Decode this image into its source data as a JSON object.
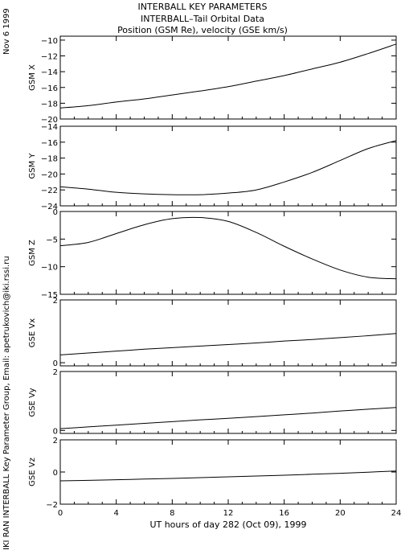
{
  "header": {
    "line1": "INTERBALL KEY PARAMETERS",
    "line2": "INTERBALL–Tail Orbital Data",
    "line3": "Position (GSM Re), velocity (GSE km/s)"
  },
  "side": {
    "date": "Nov  6 1999",
    "credit": "IKI RAN INTERBALL Key Parameter Group, Email: apetrukovich@iki.rssi.ru"
  },
  "chart_data": {
    "type": "line",
    "xlabel": "UT hours of day 282 (Oct 09), 1999",
    "xlim": [
      0,
      24
    ],
    "xticks": [
      0,
      4,
      8,
      12,
      16,
      20,
      24
    ],
    "x": [
      0,
      2,
      4,
      6,
      8,
      10,
      12,
      14,
      16,
      18,
      20,
      22,
      24
    ],
    "panels": [
      {
        "ylabel": "GSM X",
        "ylim": [
          -20,
          -9.5
        ],
        "yticks": [
          -20,
          -18,
          -16,
          -14,
          -12,
          -10
        ],
        "values": [
          -18.6,
          -18.3,
          -17.85,
          -17.45,
          -16.95,
          -16.45,
          -15.9,
          -15.2,
          -14.5,
          -13.65,
          -12.8,
          -11.7,
          -10.5
        ]
      },
      {
        "ylabel": "GSM Y",
        "ylim": [
          -24,
          -14
        ],
        "yticks": [
          -24,
          -22,
          -20,
          -18,
          -16,
          -14
        ],
        "values": [
          -21.6,
          -21.9,
          -22.3,
          -22.5,
          -22.6,
          -22.6,
          -22.4,
          -22.0,
          -21.0,
          -19.8,
          -18.3,
          -16.8,
          -15.8
        ]
      },
      {
        "ylabel": "GSM Z",
        "ylim": [
          -15,
          0
        ],
        "yticks": [
          -15,
          -10,
          -5,
          0
        ],
        "values": [
          -6.2,
          -5.6,
          -4.0,
          -2.4,
          -1.3,
          -1.1,
          -1.8,
          -3.8,
          -6.3,
          -8.6,
          -10.6,
          -11.9,
          -12.2
        ]
      },
      {
        "ylabel": "GSE Vx",
        "ylim": [
          -0.1,
          2
        ],
        "yticks": [
          0,
          2
        ],
        "values": [
          0.25,
          0.31,
          0.37,
          0.43,
          0.48,
          0.53,
          0.58,
          0.63,
          0.69,
          0.74,
          0.8,
          0.86,
          0.93
        ]
      },
      {
        "ylabel": "GSE Vy",
        "ylim": [
          -0.1,
          2
        ],
        "yticks": [
          0,
          2
        ],
        "values": [
          0.06,
          0.12,
          0.18,
          0.24,
          0.3,
          0.36,
          0.41,
          0.47,
          0.53,
          0.59,
          0.66,
          0.72,
          0.78
        ]
      },
      {
        "ylabel": "GSE Vz",
        "ylim": [
          -2,
          2
        ],
        "yticks": [
          -2,
          0,
          2
        ],
        "values": [
          -0.55,
          -0.52,
          -0.48,
          -0.44,
          -0.4,
          -0.35,
          -0.3,
          -0.25,
          -0.2,
          -0.14,
          -0.08,
          -0.01,
          0.06
        ]
      }
    ]
  }
}
